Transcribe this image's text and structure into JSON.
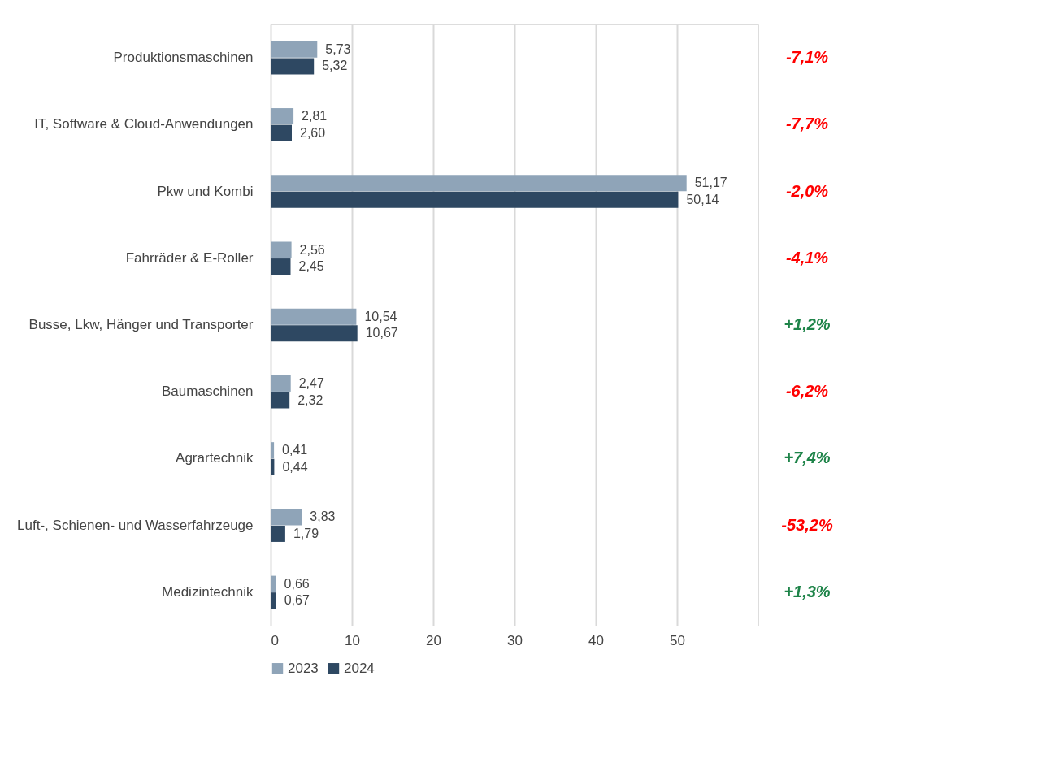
{
  "chart_data": {
    "type": "bar",
    "orientation": "horizontal",
    "categories": [
      "Produktionsmaschinen",
      "IT, Software & Cloud-Anwendungen",
      "Pkw und Kombi",
      "Fahrräder & E-Roller",
      "Busse, Lkw, Hänger und Transporter",
      "Baumaschinen",
      "Agrartechnik",
      "Luft-, Schienen- und Wasserfahrzeuge",
      "Medizintechnik"
    ],
    "series": [
      {
        "name": "2023",
        "color": "#8fa4b8",
        "values": [
          5.73,
          2.81,
          51.17,
          2.56,
          10.54,
          2.47,
          0.41,
          3.83,
          0.66
        ],
        "value_labels": [
          "5,73",
          "2,81",
          "51,17",
          "2,56",
          "10,54",
          "2,47",
          "0,41",
          "3,83",
          "0,66"
        ]
      },
      {
        "name": "2024",
        "color": "#2e4862",
        "values": [
          5.32,
          2.6,
          50.14,
          2.45,
          10.67,
          2.32,
          0.44,
          1.79,
          0.67
        ],
        "value_labels": [
          "5,32",
          "2,60",
          "50,14",
          "2,45",
          "10,67",
          "2,32",
          "0,44",
          "1,79",
          "0,67"
        ]
      }
    ],
    "xlim": [
      0,
      60
    ],
    "xticks": [
      0,
      10,
      20,
      30,
      40,
      50
    ],
    "grid": "x",
    "legend": "bottom",
    "annotations": [
      "-7,1%",
      "-7,7%",
      "-2,0%",
      "-4,1%",
      "+1,2%",
      "-6,2%",
      "+7,4%",
      "-53,2%",
      "+1,3%"
    ]
  }
}
